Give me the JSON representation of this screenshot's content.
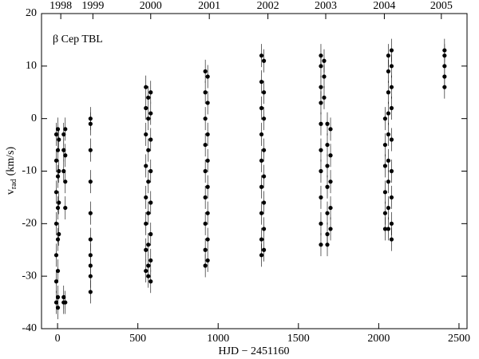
{
  "chart_data": {
    "type": "scatter",
    "annotation": "β Cep  TBL",
    "xlabel": "HJD − 2451160",
    "ylabel_parts": [
      "v",
      "rad",
      "(km/s)"
    ],
    "xlim": [
      -100,
      2550
    ],
    "ylim": [
      -40,
      20
    ],
    "xticks": [
      0,
      500,
      1000,
      1500,
      2000,
      2500
    ],
    "yticks": [
      -40,
      -30,
      -20,
      -10,
      0,
      10,
      20
    ],
    "top_ticks": [
      {
        "value": 20,
        "label": "1998"
      },
      {
        "value": 220,
        "label": "1999"
      },
      {
        "value": 580,
        "label": "2000"
      },
      {
        "value": 945,
        "label": "2001"
      },
      {
        "value": 1310,
        "label": "2002"
      },
      {
        "value": 1670,
        "label": "2003"
      },
      {
        "value": 2035,
        "label": "2004"
      },
      {
        "value": 2390,
        "label": "2005"
      }
    ],
    "series": [
      {
        "color": "#000000",
        "error": 2.2,
        "x": [
          -8,
          -8,
          -8,
          -8,
          -8,
          -8,
          -8,
          2,
          2,
          2,
          2,
          2,
          2,
          2,
          2,
          8,
          8,
          8,
          8,
          38,
          38,
          38,
          38,
          38,
          48,
          48,
          48,
          48,
          48,
          205,
          205,
          205,
          205,
          205,
          205,
          205,
          205,
          205,
          205,
          550,
          550,
          550,
          550,
          550,
          550,
          550,
          550,
          565,
          565,
          565,
          565,
          565,
          565,
          565,
          565,
          580,
          580,
          580,
          580,
          580,
          580,
          580,
          580,
          920,
          920,
          920,
          920,
          920,
          920,
          920,
          920,
          920,
          935,
          935,
          935,
          935,
          935,
          935,
          935,
          935,
          1270,
          1270,
          1270,
          1270,
          1270,
          1270,
          1270,
          1270,
          1270,
          1285,
          1285,
          1285,
          1285,
          1285,
          1285,
          1285,
          1285,
          1640,
          1640,
          1640,
          1640,
          1640,
          1640,
          1640,
          1640,
          1640,
          1640,
          1660,
          1660,
          1660,
          1680,
          1680,
          1680,
          1680,
          1680,
          1680,
          1680,
          1700,
          1700,
          1700,
          1700,
          1700,
          2040,
          2040,
          2040,
          2040,
          2040,
          2040,
          2060,
          2060,
          2060,
          2060,
          2060,
          2060,
          2060,
          2060,
          2060,
          2080,
          2080,
          2080,
          2080,
          2080,
          2080,
          2080,
          2080,
          2080,
          2410,
          2410,
          2410,
          2410,
          2410
        ],
        "y": [
          -3,
          -8,
          -14,
          -20,
          -26,
          -31,
          -35,
          -2,
          -6,
          -11,
          -17,
          -23,
          -29,
          -34,
          -36,
          -4,
          -10,
          -16,
          -22,
          -3,
          -6,
          -10,
          -35,
          -34,
          -2,
          -7,
          -12,
          -17,
          -35,
          -33,
          -30,
          -26,
          -23,
          -18,
          -12,
          -6,
          -1,
          0,
          -28,
          6,
          2,
          -3,
          -9,
          -15,
          -20,
          -25,
          -29,
          4,
          0,
          -6,
          -12,
          -18,
          -24,
          -28,
          -30,
          5,
          1,
          -4,
          -10,
          -16,
          -22,
          -27,
          -31,
          9,
          5,
          0,
          -5,
          -10,
          -15,
          -20,
          -25,
          -28,
          8,
          3,
          -3,
          -8,
          -13,
          -18,
          -23,
          -27,
          12,
          7,
          2,
          -3,
          -8,
          -13,
          -18,
          -23,
          -26,
          11,
          5,
          0,
          -6,
          -11,
          -16,
          -21,
          -25,
          12,
          10,
          6,
          3,
          -1,
          -6,
          -10,
          -15,
          -20,
          -24,
          11,
          8,
          4,
          -1,
          -5,
          -9,
          -13,
          -18,
          -22,
          -24,
          -2,
          -7,
          -12,
          -17,
          -21,
          -21,
          -18,
          -14,
          -9,
          -5,
          0,
          12,
          9,
          5,
          1,
          -3,
          -8,
          -12,
          -17,
          -21,
          13,
          10,
          6,
          2,
          -4,
          -10,
          -15,
          -20,
          -23,
          13,
          12,
          10,
          8,
          6
        ]
      }
    ]
  }
}
